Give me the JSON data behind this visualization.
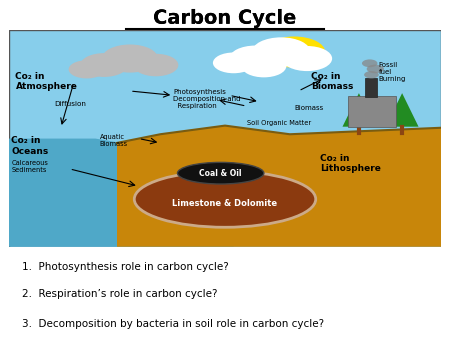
{
  "title": "Carbon Cycle",
  "background_color": "#ffffff",
  "sky_color": "#87CEEB",
  "ground_color": "#C8860A",
  "ocean_color": "#4FA8C8",
  "fig_width": 4.5,
  "fig_height": 3.38,
  "dpi": 100,
  "questions": [
    "Photosynthesis role in carbon cycle?",
    "Respiration’s role in carbon cycle?",
    "Decomposition by bacteria in soil role in carbon cycle?"
  ],
  "labels": {
    "co2_atmosphere": "Co₂ in\nAtmosphere",
    "co2_biomass": "Co₂ in\nBiomass",
    "co2_oceans": "Co₂ in\nOceans",
    "co2_lithosphere": "Co₂ in\nLithosphere",
    "diffusion": "Diffusion",
    "aquatic_biomass": "Aquatic\nBiomass",
    "calcareous": "Calcareous\nSediments",
    "photosynthesis": "Photosynthesis\nDecomposition and\n  Respiration",
    "biomass": "Biomass",
    "soil_organic": "Soil Organic Matter",
    "coal_oil": "Coal & Oil",
    "limestone": "Limestone & Dolomite",
    "fossil": "Fossil\nfuel\nBurning"
  }
}
